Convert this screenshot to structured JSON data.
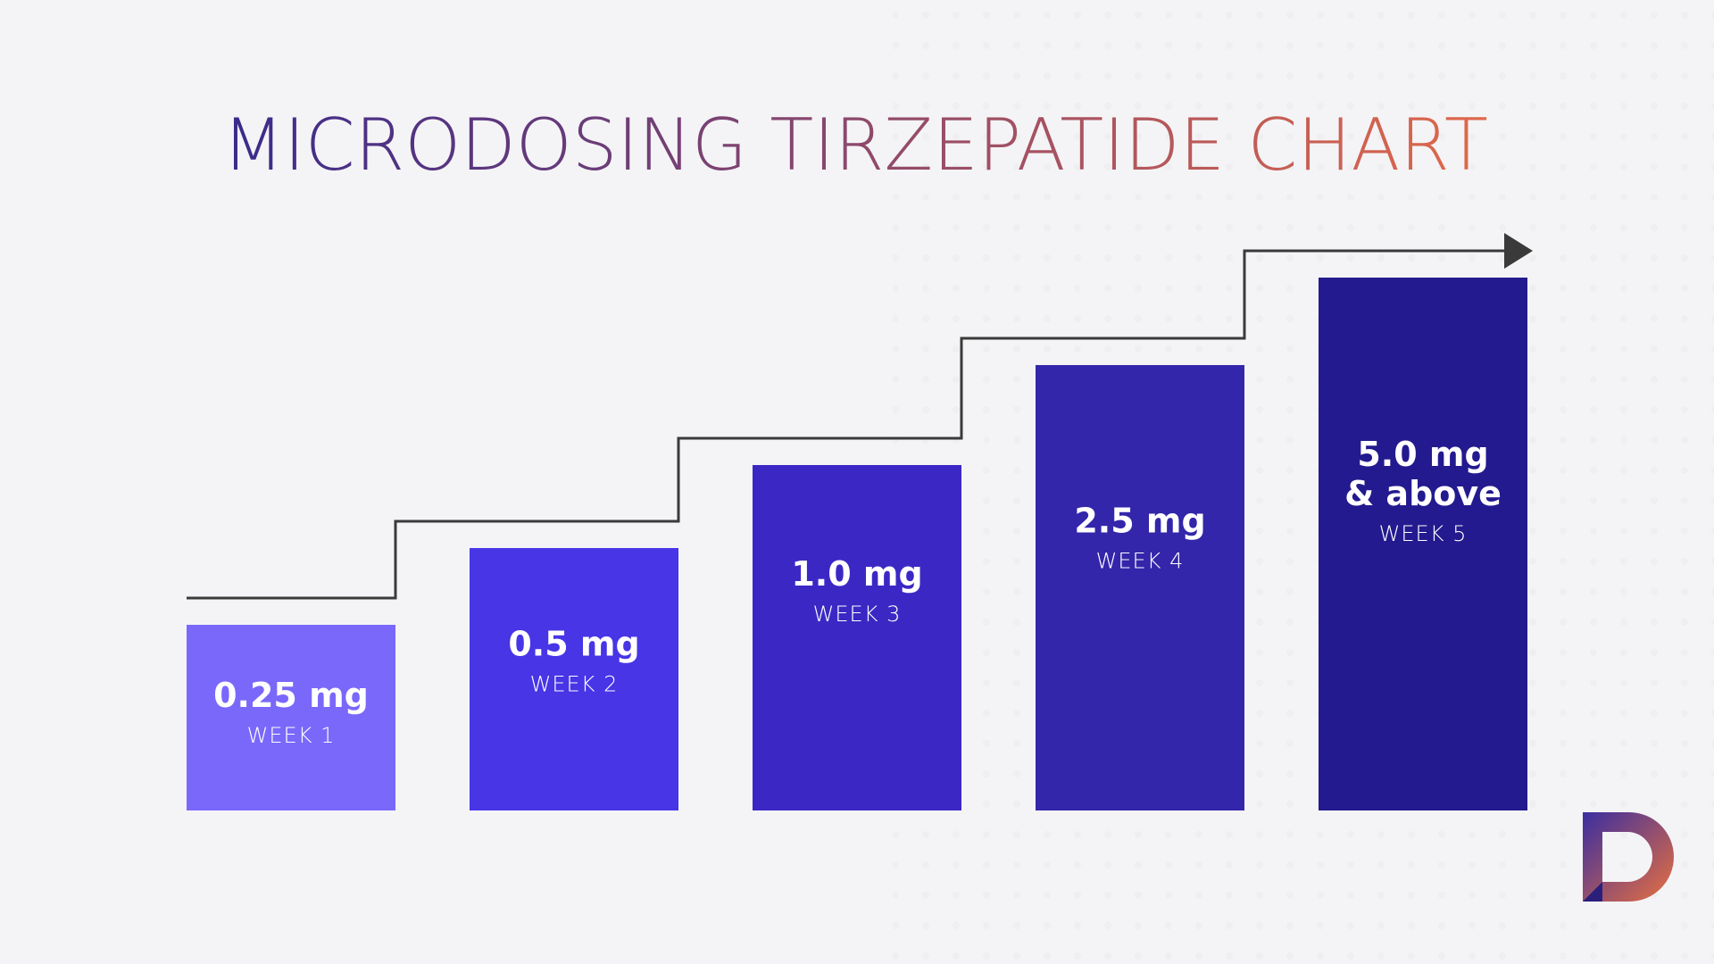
{
  "title": "MICRODOSING TIRZEPATIDE CHART",
  "colors": {
    "background": "#f4f4f6",
    "title_gradient": [
      "#3a2a8c",
      "#e0684a"
    ],
    "step_line": "#3a3a3a",
    "bar_text": "#ffffff",
    "logo_gradient": [
      "#3b2ea0",
      "#e8703f"
    ]
  },
  "logo": {
    "letter": "D",
    "icon": "brand-logo-icon"
  },
  "chart_data": {
    "type": "bar",
    "title": "MICRODOSING TIRZEPATIDE CHART",
    "categories": [
      "WEEK 1",
      "WEEK 2",
      "WEEK 3",
      "WEEK 4",
      "WEEK 5"
    ],
    "values": [
      0.25,
      0.5,
      1.0,
      2.5,
      5.0
    ],
    "value_labels": [
      [
        "0.25 mg"
      ],
      [
        "0.5 mg"
      ],
      [
        "1.0 mg"
      ],
      [
        "2.5 mg"
      ],
      [
        "5.0 mg",
        "& above"
      ]
    ],
    "bar_colors": [
      "#7a68fb",
      "#4735e6",
      "#3b28c4",
      "#3326aa",
      "#231a8f"
    ],
    "step_indicator": "rising stepped line with arrow pointing right",
    "xlabel": "",
    "ylabel": "",
    "grid": false,
    "legend": "none"
  }
}
